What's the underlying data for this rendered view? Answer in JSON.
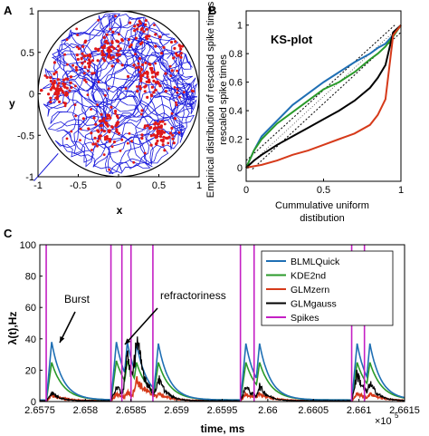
{
  "panels": {
    "a": "A",
    "b": "B",
    "c": "C"
  },
  "colors": {
    "blue": "#1f6fb4",
    "green": "#2a9a2a",
    "red": "#d63a1a",
    "black": "#000000",
    "magenta": "#c420c4",
    "traj": "#1a1adc",
    "spikes": "#e01818"
  },
  "chart_data": [
    {
      "panel": "A",
      "type": "scatter",
      "xlabel": "x",
      "ylabel": "y",
      "xlim": [
        -1,
        1
      ],
      "ylim": [
        -1,
        1
      ],
      "xticks": [
        "-1",
        "-0.5",
        "0",
        "0.5",
        "1"
      ],
      "yticks": [
        "-1",
        "-0.5",
        "0",
        "0.5",
        "1"
      ],
      "series": [
        {
          "label": "trajectory",
          "color": "#1a1adc"
        },
        {
          "label": "spikes",
          "color": "#e01818",
          "clusters": [
            [
              -0.75,
              0.05
            ],
            [
              -0.1,
              0.5
            ],
            [
              -0.15,
              -0.4
            ],
            [
              0.35,
              0.2
            ],
            [
              0.5,
              -0.5
            ],
            [
              0.3,
              0.75
            ],
            [
              -0.4,
              0.45
            ],
            [
              0.75,
              0.55
            ]
          ]
        }
      ]
    },
    {
      "panel": "B",
      "type": "line",
      "title": "KS-plot",
      "xlabel": "Cummulative uniform distibution",
      "ylabel": "Empirical distribution of rescaled spike times",
      "xlim": [
        0,
        1
      ],
      "ylim": [
        0,
        1.1
      ],
      "xticks": [
        "0",
        "0.5",
        "1"
      ],
      "yticks": [
        "0",
        "0.2",
        "0.4",
        "0.6",
        "0.8",
        "1"
      ],
      "x": [
        0,
        0.05,
        0.1,
        0.2,
        0.3,
        0.4,
        0.5,
        0.6,
        0.7,
        0.8,
        0.85,
        0.9,
        0.95,
        1.0
      ],
      "series": [
        {
          "color": "#1f6fb4",
          "values": [
            0.0,
            0.12,
            0.22,
            0.33,
            0.44,
            0.52,
            0.6,
            0.67,
            0.74,
            0.8,
            0.84,
            0.87,
            0.93,
            1.0
          ]
        },
        {
          "color": "#2a9a2a",
          "values": [
            0.0,
            0.12,
            0.2,
            0.31,
            0.39,
            0.47,
            0.55,
            0.6,
            0.67,
            0.76,
            0.8,
            0.85,
            0.92,
            1.0
          ]
        },
        {
          "color": "#000000",
          "values": [
            0.0,
            0.05,
            0.09,
            0.16,
            0.22,
            0.28,
            0.34,
            0.4,
            0.47,
            0.56,
            0.63,
            0.72,
            0.95,
            1.0
          ]
        },
        {
          "color": "#d63a1a",
          "values": [
            0.0,
            0.01,
            0.02,
            0.05,
            0.09,
            0.12,
            0.16,
            0.2,
            0.24,
            0.3,
            0.37,
            0.48,
            0.93,
            1.0
          ]
        }
      ]
    },
    {
      "panel": "C",
      "type": "line",
      "xlabel": "time, ms",
      "ylabel": "λ(t),Hz",
      "xlim": [
        265750,
        266150
      ],
      "ylim": [
        0,
        100
      ],
      "xticks": [
        "2.6575",
        "2.658",
        "2.6585",
        "2.659",
        "2.6595",
        "2.66",
        "2.6605",
        "2.661",
        "2.6615"
      ],
      "yticks": [
        "0",
        "20",
        "40",
        "60",
        "80",
        "100"
      ],
      "x_exponent": "×10",
      "x_exponent_power": "5",
      "spike_times": [
        265757,
        265828,
        265840,
        265850,
        265874,
        265970,
        265985,
        266092,
        266106
      ],
      "peak_heights": {
        "BLMLQuick": [
          38,
          38,
          38,
          37,
          37,
          37,
          37,
          37,
          37
        ],
        "KDE2nd": [
          25,
          26,
          26,
          25,
          25,
          25,
          25,
          25,
          25
        ],
        "GLMzern": [
          4,
          5,
          6,
          14,
          5,
          5,
          5,
          5,
          5
        ],
        "GLMgauss": [
          6,
          10,
          30,
          42,
          15,
          10,
          10,
          18,
          12
        ]
      },
      "series": [
        {
          "name": "BLMLQuick",
          "color": "#1f6fb4"
        },
        {
          "name": "KDE2nd",
          "color": "#2a9a2a"
        },
        {
          "name": "GLMzern",
          "color": "#d63a1a"
        },
        {
          "name": "GLMgauss",
          "color": "#000000"
        },
        {
          "name": "Spikes",
          "color": "#c420c4"
        }
      ],
      "annotations": [
        {
          "text": "Burst"
        },
        {
          "text": "refractoriness"
        }
      ]
    }
  ]
}
